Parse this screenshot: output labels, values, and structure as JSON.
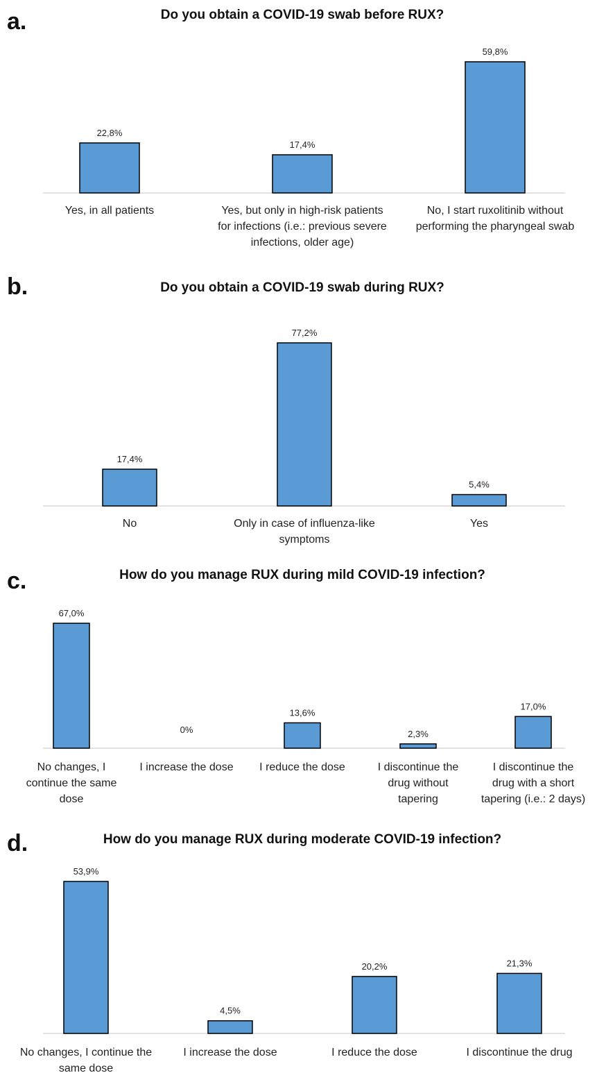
{
  "chart_data": [
    {
      "type": "bar",
      "panel": "a.",
      "title": "Do you obtain a COVID-19 swab before RUX?",
      "categories": [
        [
          "Yes, in all patients"
        ],
        [
          "Yes, but only in high-risk patients",
          "for infections (i.e.: previous severe",
          "infections, older age)"
        ],
        [
          "No, I start ruxolitinib without",
          "performing the pharyngeal swab"
        ]
      ],
      "values": [
        22.8,
        17.4,
        59.8
      ],
      "value_labels": [
        "22,8%",
        "17,4%",
        "59,8%"
      ],
      "ylim": [
        0,
        59.8
      ],
      "color": "#5b9bd5",
      "grid": false
    },
    {
      "type": "bar",
      "panel": "b.",
      "title": "Do you obtain a COVID-19 swab during RUX?",
      "categories": [
        [
          "No"
        ],
        [
          "Only in case of influenza-like",
          "symptoms"
        ],
        [
          "Yes"
        ]
      ],
      "values": [
        17.4,
        77.2,
        5.4
      ],
      "value_labels": [
        "17,4%",
        "77,2%",
        "5,4%"
      ],
      "ylim": [
        0,
        77.2
      ],
      "color": "#5b9bd5",
      "grid": false
    },
    {
      "type": "bar",
      "panel": "c.",
      "title": "How do you manage RUX during mild COVID-19 infection?",
      "categories": [
        [
          "No changes, I",
          "continue the same",
          "dose"
        ],
        [
          "I increase the dose"
        ],
        [
          "I reduce the dose"
        ],
        [
          "I discontinue the",
          "drug without",
          "tapering"
        ],
        [
          "I discontinue the",
          "drug with a short",
          "tapering (i.e.: 2 days)"
        ]
      ],
      "values": [
        67.0,
        0,
        13.6,
        2.3,
        17.0
      ],
      "value_labels": [
        "67,0%",
        "0%",
        "13,6%",
        "2,3%",
        "17,0%"
      ],
      "ylim": [
        0,
        67.0
      ],
      "color": "#5b9bd5",
      "grid": false
    },
    {
      "type": "bar",
      "panel": "d.",
      "title": "How do you manage RUX during moderate COVID-19 infection?",
      "categories": [
        [
          "No changes, I continue the",
          "same dose"
        ],
        [
          "I increase the dose"
        ],
        [
          "I reduce the dose"
        ],
        [
          "I discontinue the drug"
        ]
      ],
      "values": [
        53.9,
        4.5,
        20.2,
        21.3
      ],
      "value_labels": [
        "53,9%",
        "4,5%",
        "20,2%",
        "21,3%"
      ],
      "ylim": [
        0,
        53.9
      ],
      "color": "#5b9bd5",
      "grid": false
    }
  ]
}
